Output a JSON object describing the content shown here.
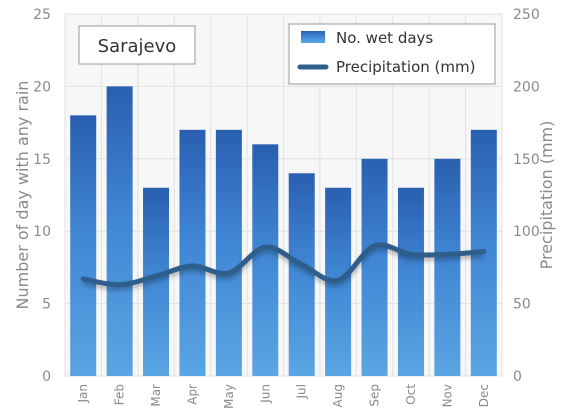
{
  "chart_data": {
    "type": "bar",
    "title": "Sarajevo",
    "categories": [
      "Jan",
      "Feb",
      "Mar",
      "Apr",
      "May",
      "Jun",
      "Jul",
      "Aug",
      "Sep",
      "Oct",
      "Nov",
      "Dec"
    ],
    "series": [
      {
        "name": "No. wet days",
        "type": "bar",
        "axis": "left",
        "values": [
          18,
          20,
          13,
          17,
          17,
          16,
          14,
          13,
          15,
          13,
          15,
          17
        ]
      },
      {
        "name": "Precipitation (mm)",
        "type": "line",
        "axis": "right",
        "values": [
          67,
          63,
          69,
          76,
          71,
          89,
          77,
          66,
          90,
          84,
          84,
          86
        ]
      }
    ],
    "ylabel": "Number of day with any rain",
    "y2label": "Precipitation (mm)",
    "ylim": [
      0,
      25
    ],
    "y2lim": [
      0,
      250
    ],
    "yticks": [
      "0",
      "5",
      "10",
      "15",
      "20",
      "25"
    ],
    "y2ticks": [
      "0",
      "50",
      "100",
      "150",
      "200",
      "250"
    ],
    "grid": true,
    "legend": "top-right",
    "colors": {
      "bar_top": "#2a5fb0",
      "bar_mid": "#3f86d3",
      "bar_bottom": "#5aa5e3",
      "line": "#2f5d8c",
      "plot_bg": "#f7f7f7",
      "grid": "#e2e2e2"
    }
  }
}
